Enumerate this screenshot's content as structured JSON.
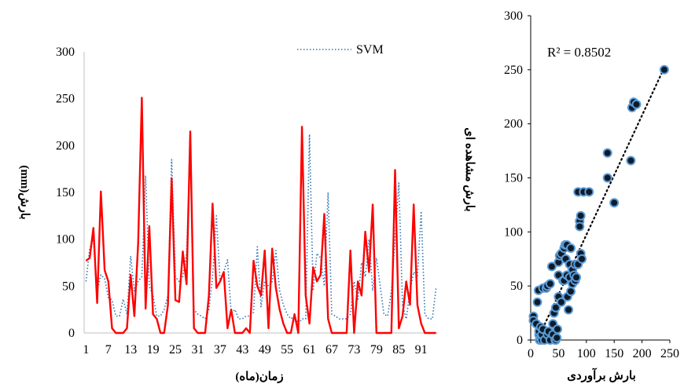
{
  "chart_data": [
    {
      "type": "line",
      "title": "",
      "xlabel": "زمان(ماه)",
      "ylabel": "بارش(mm)",
      "ylim": [
        0,
        300
      ],
      "yticks": [
        0,
        50,
        100,
        150,
        200,
        250,
        300
      ],
      "x_tick_labels": [
        "1",
        "7",
        "13",
        "19",
        "25",
        "31",
        "37",
        "43",
        "49",
        "55",
        "61",
        "67",
        "73",
        "79",
        "85",
        "91"
      ],
      "grid": false,
      "legend_position": "top-right",
      "legend": [
        "SVM"
      ],
      "x": [
        1,
        2,
        3,
        4,
        5,
        6,
        7,
        8,
        9,
        10,
        11,
        12,
        13,
        14,
        15,
        16,
        17,
        18,
        19,
        20,
        21,
        22,
        23,
        24,
        25,
        26,
        27,
        28,
        29,
        30,
        31,
        32,
        33,
        34,
        35,
        36,
        37,
        38,
        39,
        40,
        41,
        42,
        43,
        44,
        45,
        46,
        47,
        48,
        49,
        50,
        51,
        52,
        53,
        54,
        55,
        56,
        57,
        58,
        59,
        60,
        61,
        62,
        63,
        64,
        65,
        66,
        67,
        68,
        69,
        70,
        71,
        72,
        73,
        74,
        75,
        76,
        77,
        78,
        79,
        80,
        81,
        82,
        83,
        84,
        85,
        86,
        87,
        88,
        89,
        90,
        91,
        92,
        93,
        94,
        95
      ],
      "series": [
        {
          "name": "SVM",
          "color": "#2e75b6",
          "style": "dotted",
          "values": [
            55,
            90,
            100,
            45,
            62,
            58,
            38,
            35,
            18,
            18,
            36,
            20,
            82,
            45,
            55,
            60,
            168,
            50,
            40,
            18,
            18,
            25,
            40,
            185,
            60,
            55,
            60,
            85,
            195,
            25,
            20,
            18,
            15,
            25,
            60,
            125,
            55,
            65,
            78,
            20,
            25,
            15,
            15,
            18,
            18,
            22,
            92,
            28,
            55,
            50,
            55,
            88,
            45,
            30,
            20,
            15,
            18,
            10,
            15,
            15,
            212,
            45,
            85,
            80,
            50,
            150,
            20,
            18,
            15,
            15,
            15,
            20,
            55,
            35,
            75,
            60,
            100,
            45,
            80,
            50,
            20,
            18,
            45,
            100,
            160,
            30,
            15,
            45,
            65,
            60,
            130,
            20,
            15,
            15,
            48
          ]
        },
        {
          "name": "",
          "color": "#ff0000",
          "style": "solid",
          "values": [
            77,
            80,
            112,
            32,
            151,
            67,
            55,
            5,
            0,
            0,
            0,
            5,
            62,
            18,
            95,
            251,
            26,
            114,
            20,
            15,
            0,
            0,
            30,
            165,
            35,
            33,
            87,
            52,
            215,
            5,
            0,
            0,
            0,
            40,
            138,
            48,
            55,
            65,
            5,
            25,
            0,
            0,
            0,
            5,
            0,
            77,
            50,
            40,
            88,
            5,
            90,
            48,
            25,
            10,
            0,
            0,
            20,
            0,
            220,
            40,
            10,
            70,
            55,
            62,
            127,
            15,
            0,
            0,
            0,
            0,
            0,
            88,
            0,
            55,
            40,
            108,
            65,
            137,
            0,
            0,
            0,
            0,
            0,
            174,
            5,
            18,
            55,
            30,
            137,
            30,
            10,
            0,
            0,
            0,
            0
          ]
        }
      ]
    },
    {
      "type": "scatter",
      "title": "",
      "xlabel": "بارش برآوردی",
      "ylabel": "بارش مشاهده ای",
      "xlim": [
        0,
        250
      ],
      "ylim": [
        0,
        300
      ],
      "xticks": [
        0,
        50,
        100,
        150,
        200,
        250
      ],
      "yticks": [
        0,
        50,
        100,
        150,
        200,
        250,
        300
      ],
      "annotation": "R² = 0.8502",
      "trendline": {
        "style": "dotted",
        "from": [
          12,
          0
        ],
        "to": [
          240,
          252
        ]
      },
      "points": [
        [
          5,
          22
        ],
        [
          5,
          18
        ],
        [
          10,
          15
        ],
        [
          12,
          35
        ],
        [
          14,
          46
        ],
        [
          15,
          5
        ],
        [
          15,
          8
        ],
        [
          16,
          0
        ],
        [
          18,
          2
        ],
        [
          18,
          12
        ],
        [
          20,
          0
        ],
        [
          20,
          5
        ],
        [
          22,
          10
        ],
        [
          22,
          48
        ],
        [
          25,
          0
        ],
        [
          28,
          48
        ],
        [
          30,
          50
        ],
        [
          30,
          5
        ],
        [
          32,
          8
        ],
        [
          35,
          0
        ],
        [
          35,
          52
        ],
        [
          38,
          68
        ],
        [
          40,
          5
        ],
        [
          40,
          15
        ],
        [
          42,
          25
        ],
        [
          44,
          0
        ],
        [
          45,
          0
        ],
        [
          45,
          30
        ],
        [
          47,
          2
        ],
        [
          48,
          10
        ],
        [
          50,
          72
        ],
        [
          50,
          60
        ],
        [
          50,
          40
        ],
        [
          52,
          78
        ],
        [
          55,
          80
        ],
        [
          55,
          35
        ],
        [
          58,
          55
        ],
        [
          60,
          85
        ],
        [
          60,
          55
        ],
        [
          62,
          88
        ],
        [
          63,
          75
        ],
        [
          65,
          88
        ],
        [
          65,
          60
        ],
        [
          66,
          40
        ],
        [
          68,
          28
        ],
        [
          70,
          70
        ],
        [
          70,
          58
        ],
        [
          72,
          85
        ],
        [
          72,
          45
        ],
        [
          75,
          52
        ],
        [
          75,
          65
        ],
        [
          78,
          60
        ],
        [
          80,
          70
        ],
        [
          80,
          55
        ],
        [
          82,
          58
        ],
        [
          85,
          70
        ],
        [
          85,
          137
        ],
        [
          88,
          110
        ],
        [
          88,
          105
        ],
        [
          90,
          115
        ],
        [
          90,
          80
        ],
        [
          92,
          75
        ],
        [
          95,
          137
        ],
        [
          105,
          137
        ],
        [
          138,
          173
        ],
        [
          138,
          150
        ],
        [
          150,
          127
        ],
        [
          180,
          166
        ],
        [
          182,
          215
        ],
        [
          185,
          220
        ],
        [
          190,
          218
        ],
        [
          240,
          250
        ]
      ]
    }
  ]
}
